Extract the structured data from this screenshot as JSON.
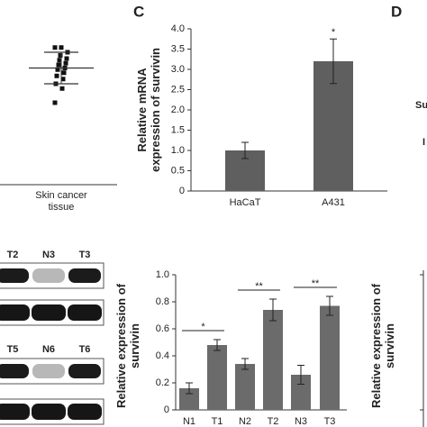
{
  "panel_labels": {
    "c": "C",
    "d": "D"
  },
  "fragments": [
    "Su",
    "I"
  ],
  "blot": {
    "lanes": [
      [
        "T2",
        "N3",
        "T3"
      ],
      [
        "T5",
        "N6",
        "T6"
      ]
    ]
  },
  "partial_chart": {
    "ylabel": "Relative expression of survivin"
  },
  "chart_data": [
    {
      "type": "scatter",
      "xlabel": "Skin cancer tissue",
      "values": [
        8.7,
        8.7,
        8.4,
        8.2,
        8.0,
        7.9,
        7.7,
        7.6,
        7.4,
        7.3,
        7.1,
        6.9,
        6.7,
        6.4,
        6.1,
        5.2
      ],
      "mean": 7.4,
      "sd": 1.0,
      "ylim": [
        0,
        10
      ],
      "color": "#111111"
    },
    {
      "type": "bar",
      "ylabel": "Relative mRNA expression of survivin",
      "categories": [
        "HaCaT",
        "A431"
      ],
      "values": [
        1.0,
        3.2
      ],
      "errors": [
        0.2,
        0.55
      ],
      "significance": [
        null,
        "*"
      ],
      "brackets": false,
      "ylim": [
        0,
        4
      ],
      "yticks": [
        0,
        0.5,
        {
          "value": 1,
          "label": "1.0"
        },
        1.5,
        {
          "value": 2,
          "label": "2.0"
        },
        2.5,
        {
          "value": 3,
          "label": "3.0"
        },
        3.5,
        {
          "value": 4,
          "label": "4.0"
        }
      ],
      "color": "#5f5f5f"
    },
    {
      "type": "bar",
      "ylabel": "Relative expression of survivin",
      "categories": [
        "N1",
        "T1",
        "N2",
        "T2",
        "N3",
        "T3"
      ],
      "values": [
        0.16,
        0.48,
        0.34,
        0.74,
        0.26,
        0.77
      ],
      "errors": [
        0.04,
        0.04,
        0.04,
        0.08,
        0.07,
        0.07
      ],
      "significance": [
        null,
        "*",
        null,
        "**",
        null,
        "**"
      ],
      "brackets": true,
      "ylim": [
        0,
        1
      ],
      "yticks": [
        0,
        0.2,
        0.4,
        0.6,
        0.8,
        {
          "value": 1,
          "label": "1.0"
        }
      ],
      "color": "#6b6b6b"
    }
  ]
}
